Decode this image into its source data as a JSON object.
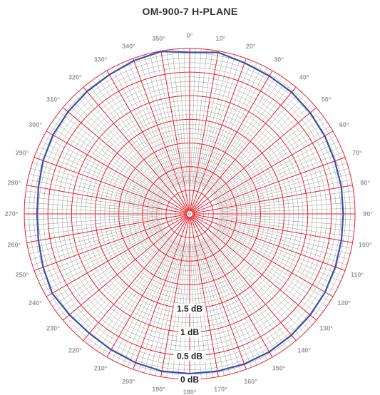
{
  "chart_data": {
    "type": "polar",
    "title": "OM-900-7 H-PLANE",
    "angle_unit": "deg",
    "angle_ticks": [
      0,
      10,
      20,
      30,
      40,
      50,
      60,
      70,
      80,
      90,
      100,
      110,
      120,
      130,
      140,
      150,
      160,
      170,
      180,
      190,
      200,
      210,
      220,
      230,
      240,
      250,
      260,
      270,
      280,
      290,
      300,
      310,
      320,
      330,
      340,
      350
    ],
    "angle_tick_labels": [
      "0°",
      "10°",
      "20°",
      "30°",
      "40°",
      "50°",
      "60°",
      "70°",
      "80°",
      "90°",
      "100°",
      "110°",
      "120°",
      "130°",
      "140°",
      "150°",
      "160°",
      "170°",
      "180°",
      "190°",
      "200°",
      "210°",
      "220°",
      "230°",
      "240°",
      "250°",
      "260°",
      "270°",
      "280°",
      "290°",
      "300°",
      "310°",
      "320°",
      "330°",
      "340°",
      "350°"
    ],
    "radial_labels": [
      {
        "value": 0,
        "text": "0 dB"
      },
      {
        "value": -0.5,
        "text": "0.5 dB"
      },
      {
        "value": -1,
        "text": "1 dB"
      },
      {
        "value": -1.5,
        "text": "1.5 dB"
      }
    ],
    "rlim": [
      -3.5,
      0
    ],
    "grid": true,
    "colors": {
      "major_grid": "#e8202a",
      "minor_grid": "#9a9a9a",
      "series": "#3a4fa3"
    },
    "series": [
      {
        "theta": [
          0,
          10,
          20,
          30,
          40,
          50,
          60,
          70,
          80,
          90,
          100,
          110,
          120,
          130,
          140,
          150,
          160,
          170,
          180,
          190,
          200,
          210,
          220,
          230,
          240,
          250,
          260,
          270,
          280,
          290,
          300,
          310,
          320,
          330,
          340,
          350,
          360
        ],
        "r": [
          -0.08,
          -0.03,
          -0.1,
          -0.13,
          -0.14,
          -0.17,
          -0.2,
          -0.23,
          -0.24,
          -0.25,
          -0.24,
          -0.22,
          -0.19,
          -0.17,
          -0.15,
          -0.13,
          -0.12,
          -0.12,
          -0.12,
          -0.12,
          -0.15,
          -0.18,
          -0.2,
          -0.18,
          -0.14,
          -0.2,
          -0.25,
          -0.27,
          -0.25,
          -0.2,
          -0.16,
          -0.14,
          -0.12,
          -0.1,
          -0.05,
          -0.01,
          -0.08
        ]
      }
    ]
  }
}
